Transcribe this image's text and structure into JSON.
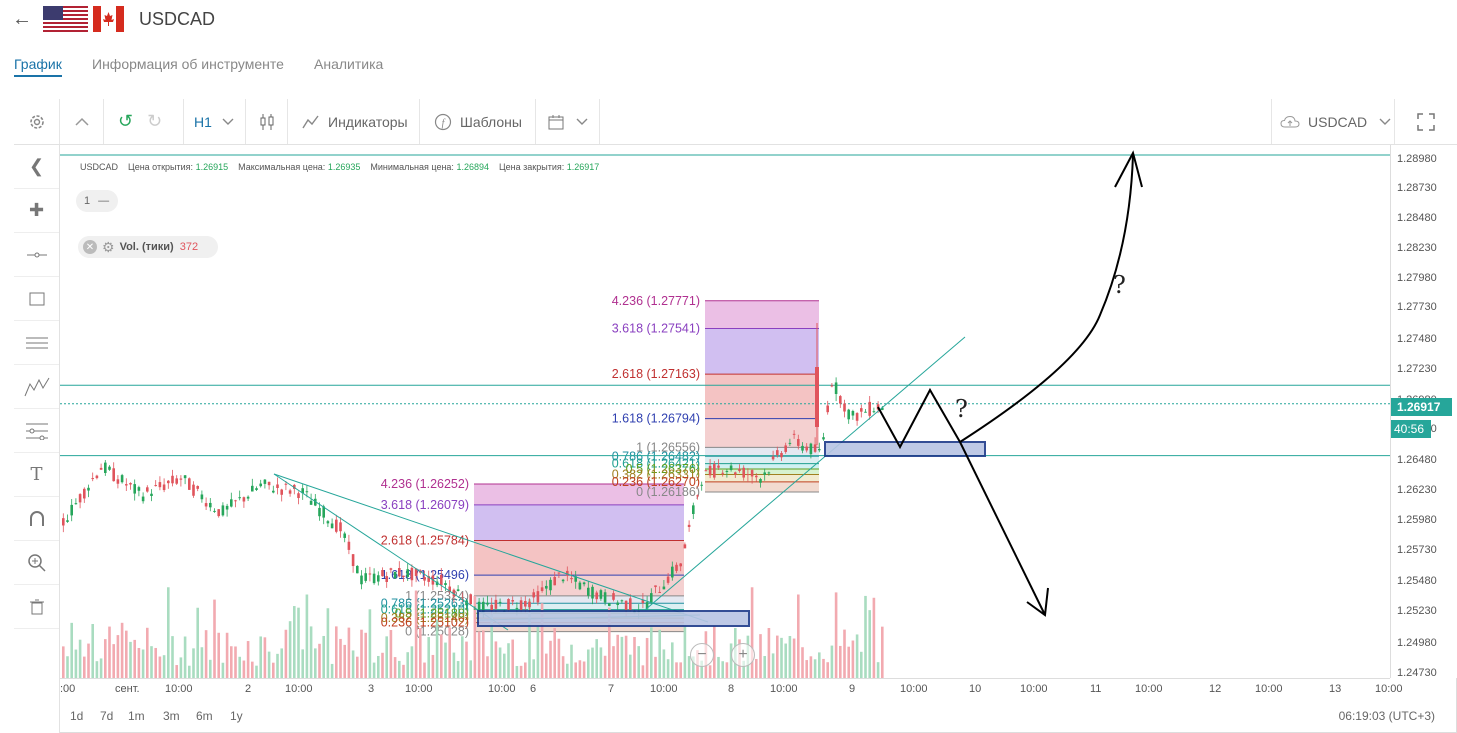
{
  "header": {
    "symbol": "USDCAD",
    "back_icon": "arrow-left-icon"
  },
  "tabs": [
    {
      "label": "График",
      "active": true
    },
    {
      "label": "Информация об инструменте",
      "active": false
    },
    {
      "label": "Аналитика",
      "active": false
    }
  ],
  "toolbar": {
    "timeframe": "H1",
    "indicators_label": "Индикаторы",
    "templates_label": "Шаблоны",
    "instrument_select": "USDCAD"
  },
  "infobar": {
    "symbol": "USDCAD",
    "open_label": "Цена открытия:",
    "open_value": "1.26915",
    "high_label": "Максимальная цена:",
    "high_value": "1.26935",
    "low_label": "Минимальная цена:",
    "low_value": "1.26894",
    "close_label": "Цена закрытия:",
    "close_value": "1.26917"
  },
  "pane_chip": {
    "number": "1",
    "minus": "—"
  },
  "volume_chip": {
    "label": "Vol. (тики)",
    "value": "372"
  },
  "price_axis": {
    "labels": [
      "1.28980",
      "1.28730",
      "1.28480",
      "1.28230",
      "1.27980",
      "1.27730",
      "1.27480",
      "1.27230",
      "1.26980",
      "1.26730",
      "1.26480",
      "1.26230",
      "1.25980",
      "1.25730",
      "1.25480",
      "1.25230",
      "1.24980",
      "1.24730"
    ],
    "current_price": "1.26917",
    "countdown": "40:56"
  },
  "time_axis": {
    "labels": [
      ":00",
      "сент.",
      "10:00",
      "2",
      "10:00",
      "3",
      "10:00",
      "6",
      "10:00",
      "7",
      "10:00",
      "8",
      "10:00",
      "9",
      "10:00",
      "10",
      "10:00",
      "11",
      "10:00",
      "12",
      "10:00",
      "13",
      "10:00"
    ]
  },
  "fib_upper": {
    "levels": [
      "4.236 (1.27771)",
      "3.618 (1.27541)",
      "2.618 (1.27163)",
      "1.618 (1.26794)",
      "1 (1.26556)",
      "0.786 (1.26482)",
      "0.618 (1.26421)",
      "0.5 (1.26376)",
      "0.382 (1.26331)",
      "0.236 (1.26270)",
      "0 (1.26186)"
    ]
  },
  "fib_lower": {
    "levels": [
      "4.236 (1.26252)",
      "3.618 (1.26079)",
      "2.618 (1.25784)",
      "1.618 (1.25496)",
      "1 (1.25324)",
      "0.786 (1.25263)",
      "0.618 (1.25210)",
      "0.5 (1.25180)",
      "0.382 (1.25140)",
      "0.236 (1.25102)",
      "0 (1.25028)"
    ]
  },
  "annotations": {
    "question_1": "?",
    "question_2": "?"
  },
  "zoom": {
    "minus": "−",
    "plus": "+"
  },
  "ranges": [
    "1d",
    "7d",
    "1m",
    "3m",
    "6m",
    "1y"
  ],
  "clock": "06:19:03 (UTC+3)",
  "colors": {
    "accent": "#1a73a8",
    "up": "#26a65b",
    "down": "#e0545c",
    "teal": "#26a69a",
    "price_tag": "#26a69a"
  }
}
